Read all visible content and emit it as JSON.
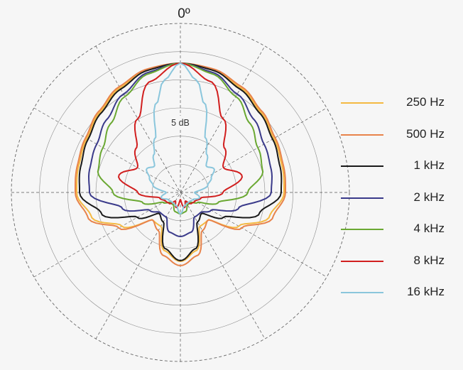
{
  "chart_data": {
    "type": "polar-line",
    "title": "",
    "angle_label": "0º",
    "radial_label": "5 dB",
    "radial_rings": 6,
    "spokes": 12,
    "grid": true,
    "legend_position": "right",
    "series": [
      {
        "name": "250 Hz",
        "color": "#f4b942",
        "points": [
          [
            0,
            182
          ],
          [
            15,
            179
          ],
          [
            30,
            170
          ],
          [
            45,
            160
          ],
          [
            60,
            152
          ],
          [
            75,
            148
          ],
          [
            90,
            146
          ],
          [
            105,
            130
          ],
          [
            120,
            95
          ],
          [
            135,
            55
          ],
          [
            150,
            55
          ],
          [
            165,
            85
          ],
          [
            180,
            97
          ]
        ]
      },
      {
        "name": "500 Hz",
        "color": "#e8834b",
        "points": [
          [
            0,
            182
          ],
          [
            15,
            180
          ],
          [
            30,
            172
          ],
          [
            45,
            162
          ],
          [
            60,
            154
          ],
          [
            75,
            150
          ],
          [
            90,
            148
          ],
          [
            105,
            135
          ],
          [
            120,
            100
          ],
          [
            135,
            55
          ],
          [
            150,
            62
          ],
          [
            165,
            92
          ],
          [
            180,
            103
          ]
        ]
      },
      {
        "name": "1 kHz",
        "color": "#1a1a1a",
        "points": [
          [
            0,
            182
          ],
          [
            15,
            178
          ],
          [
            30,
            168
          ],
          [
            45,
            158
          ],
          [
            60,
            150
          ],
          [
            75,
            145
          ],
          [
            90,
            142
          ],
          [
            105,
            115
          ],
          [
            120,
            70
          ],
          [
            135,
            42
          ],
          [
            150,
            48
          ],
          [
            165,
            82
          ],
          [
            180,
            96
          ]
        ]
      },
      {
        "name": "2 kHz",
        "color": "#3a3a8a",
        "points": [
          [
            0,
            182
          ],
          [
            15,
            175
          ],
          [
            30,
            160
          ],
          [
            45,
            146
          ],
          [
            60,
            136
          ],
          [
            75,
            132
          ],
          [
            90,
            128
          ],
          [
            105,
            85
          ],
          [
            120,
            50
          ],
          [
            135,
            40
          ],
          [
            150,
            40
          ],
          [
            165,
            58
          ],
          [
            180,
            62
          ]
        ]
      },
      {
        "name": "4 kHz",
        "color": "#6aa832",
        "points": [
          [
            0,
            182
          ],
          [
            15,
            173
          ],
          [
            30,
            156
          ],
          [
            45,
            138
          ],
          [
            60,
            126
          ],
          [
            75,
            120
          ],
          [
            90,
            95
          ],
          [
            105,
            55
          ],
          [
            120,
            28
          ],
          [
            135,
            20
          ],
          [
            150,
            20
          ],
          [
            165,
            28
          ],
          [
            180,
            30
          ]
        ]
      },
      {
        "name": "8 kHz",
        "color": "#d11f1f",
        "points": [
          [
            0,
            182
          ],
          [
            15,
            162
          ],
          [
            30,
            120
          ],
          [
            45,
            88
          ],
          [
            60,
            70
          ],
          [
            75,
            90
          ],
          [
            90,
            60
          ],
          [
            105,
            30
          ],
          [
            120,
            24
          ],
          [
            135,
            22
          ],
          [
            150,
            14
          ],
          [
            165,
            22
          ],
          [
            180,
            10
          ]
        ]
      },
      {
        "name": "16 kHz",
        "color": "#8ac6dc",
        "points": [
          [
            0,
            182
          ],
          [
            8,
            160
          ],
          [
            15,
            130
          ],
          [
            25,
            84
          ],
          [
            35,
            65
          ],
          [
            45,
            52
          ],
          [
            55,
            58
          ],
          [
            65,
            48
          ],
          [
            75,
            40
          ],
          [
            90,
            20
          ],
          [
            105,
            28
          ],
          [
            120,
            20
          ],
          [
            135,
            18
          ],
          [
            150,
            18
          ],
          [
            165,
            20
          ],
          [
            180,
            30
          ]
        ]
      }
    ]
  }
}
